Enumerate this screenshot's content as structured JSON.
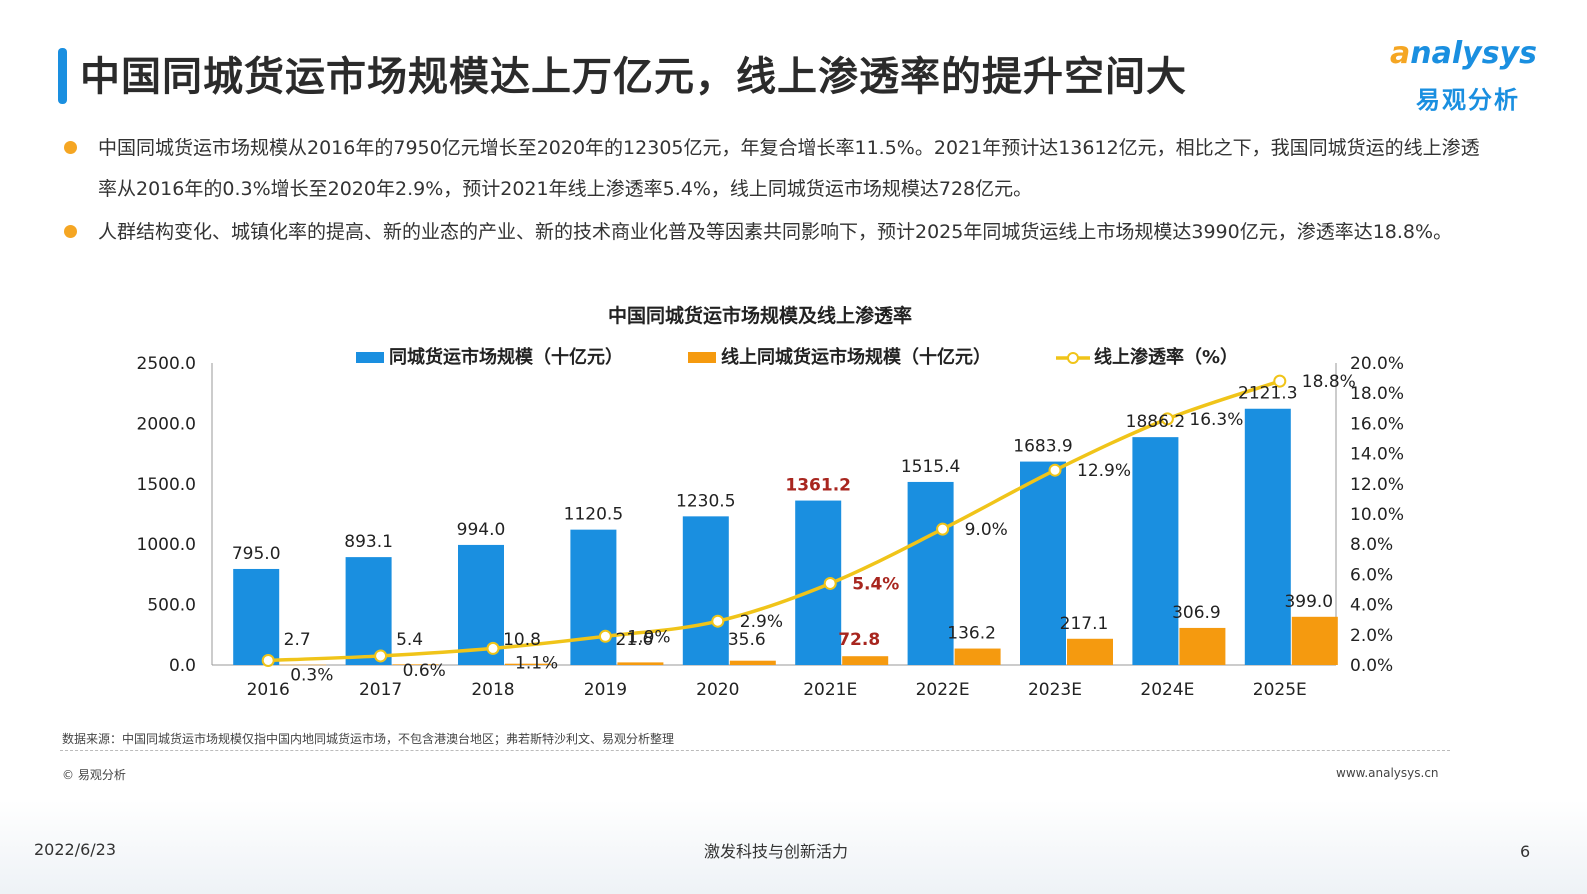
{
  "page": {
    "title": "中国同城货运市场规模达上万亿元，线上渗透率的提升空间大",
    "logo_en": "nalysys",
    "logo_o": "a",
    "logo_cn": "易观分析"
  },
  "bullets": [
    "中国同城货运市场规模从2016年的7950亿元增长至2020年的12305亿元，年复合增长率11.5%。2021年预计达13612亿元，相比之下，我国同城货运的线上渗透率从2016年的0.3%增长至2020年2.9%，预计2021年线上渗透率5.4%，线上同城货运市场规模达728亿元。",
    "人群结构变化、城镇化率的提高、新的业态的产业、新的技术商业化普及等因素共同影响下，预计2025年同城货运线上市场规模达3990亿元，渗透率达18.8%。"
  ],
  "chart_data": {
    "type": "bar",
    "title": "中国同城货运市场规模及线上渗透率",
    "categories": [
      "2016",
      "2017",
      "2018",
      "2019",
      "2020",
      "2021E",
      "2022E",
      "2023E",
      "2024E",
      "2025E"
    ],
    "series": [
      {
        "name": "同城货运市场规模（十亿元）",
        "type": "bar",
        "axis": "left",
        "color": "#1a8fe0",
        "values": [
          795.0,
          893.1,
          994.0,
          1120.5,
          1230.5,
          1361.2,
          1515.4,
          1683.9,
          1886.2,
          2121.3
        ],
        "labels": [
          "795.0",
          "893.1",
          "994.0",
          "1120.5",
          "1230.5",
          "1361.2",
          "1515.4",
          "1683.9",
          "1886.2",
          "2121.3"
        ]
      },
      {
        "name": "线上同城货运市场规模（十亿元）",
        "type": "bar",
        "axis": "left",
        "color": "#f59a0f",
        "values": [
          2.7,
          5.4,
          10.8,
          21.6,
          35.6,
          72.8,
          136.2,
          217.1,
          306.9,
          399.0
        ],
        "labels": [
          "2.7",
          "5.4",
          "10.8",
          "21.6",
          "35.6",
          "72.8",
          "136.2",
          "217.1",
          "306.9",
          "399.0"
        ]
      },
      {
        "name": "线上渗透率（%）",
        "type": "line",
        "axis": "right",
        "color": "#f0c419",
        "values": [
          0.3,
          0.6,
          1.1,
          1.9,
          2.9,
          5.4,
          9.0,
          12.9,
          16.3,
          18.8
        ],
        "labels": [
          "0.3%",
          "0.6%",
          "1.1%",
          "1.9%",
          "2.9%",
          "5.4%",
          "9.0%",
          "12.9%",
          "16.3%",
          "18.8%"
        ]
      }
    ],
    "highlight_category": "2021E",
    "highlight_color": "#a8261f",
    "y_left": {
      "range": [
        0,
        2500
      ],
      "ticks": [
        "0.0",
        "500.0",
        "1000.0",
        "1500.0",
        "2000.0",
        "2500.0"
      ],
      "tick_values": [
        0,
        500,
        1000,
        1500,
        2000,
        2500
      ]
    },
    "y_right": {
      "range": [
        0,
        20
      ],
      "ticks": [
        "0.0%",
        "2.0%",
        "4.0%",
        "6.0%",
        "8.0%",
        "10.0%",
        "12.0%",
        "14.0%",
        "16.0%",
        "18.0%",
        "20.0%"
      ],
      "tick_values": [
        0,
        2,
        4,
        6,
        8,
        10,
        12,
        14,
        16,
        18,
        20
      ]
    },
    "grid": false,
    "legend_position": "top"
  },
  "footer": {
    "source": "数据来源：中国同城货运市场规模仅指中国内地同城货运市场，不包含港澳台地区；弗若斯特沙利文、易观分析整理",
    "copyright": "© 易观分析",
    "url": "www.analysys.cn",
    "date": "2022/6/23",
    "slogan": "激发科技与创新活力",
    "page_number": "6"
  }
}
